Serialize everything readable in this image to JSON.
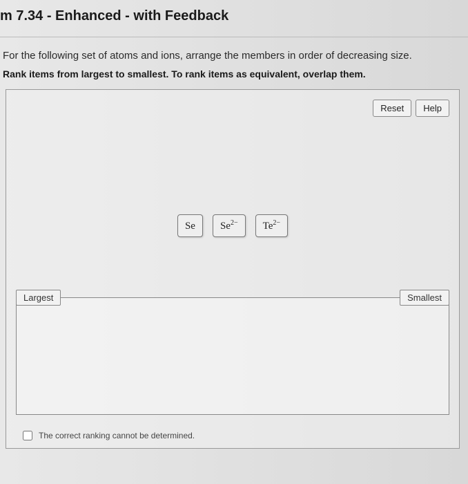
{
  "header": {
    "title": "m 7.34 - Enhanced - with Feedback"
  },
  "prompt": {
    "line1": "For the following set of atoms and ions, arrange the members in order of decreasing size.",
    "line2": "Rank items from largest to smallest. To rank items as equivalent, overlap them."
  },
  "controls": {
    "reset": "Reset",
    "help": "Help"
  },
  "items": [
    {
      "base": "Se",
      "sup": ""
    },
    {
      "base": "Se",
      "sup": "2−"
    },
    {
      "base": "Te",
      "sup": "2−"
    }
  ],
  "zone": {
    "left_label": "Largest",
    "right_label": "Smallest"
  },
  "footer": {
    "cannot_determine": "The correct ranking cannot be determined."
  },
  "colors": {
    "background": "#dcdcdc",
    "tile_bg": "#efefef",
    "tile_border": "#777777",
    "button_bg": "#f2f2f2",
    "button_border": "#888888",
    "zone_border": "#888888"
  }
}
